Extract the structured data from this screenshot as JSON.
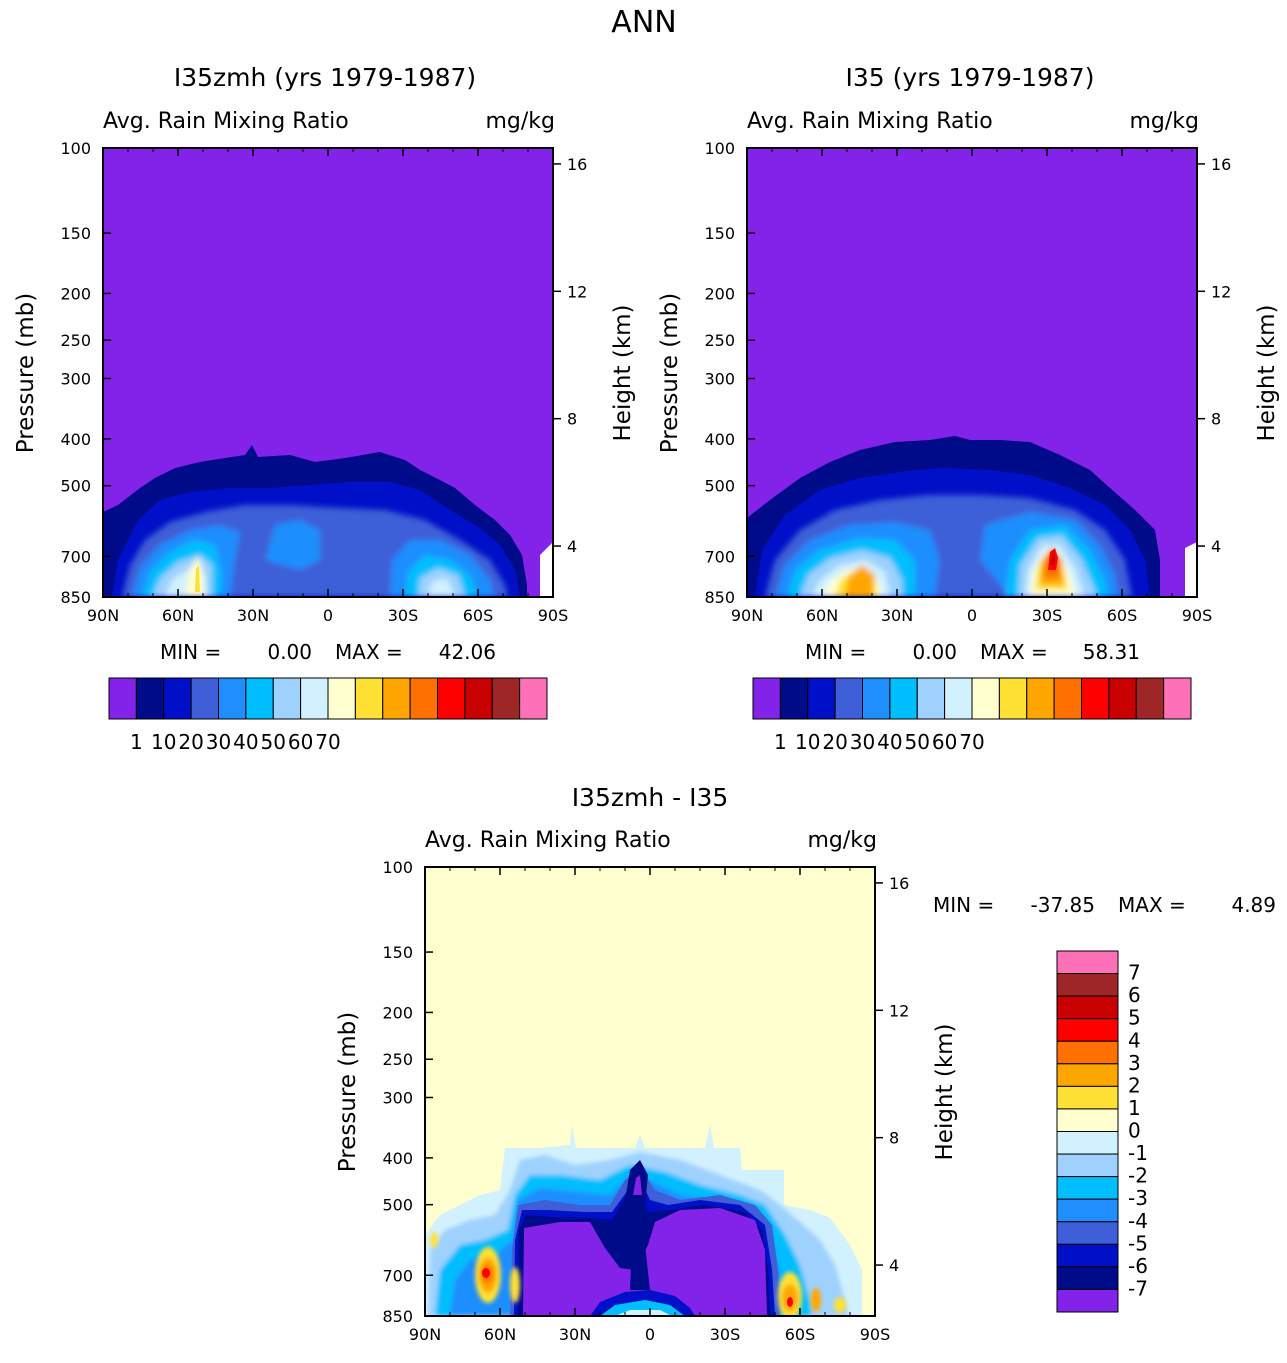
{
  "main_title": "ANN",
  "palette": [
    "#8322e9",
    "#000b8a",
    "#0010c8",
    "#3e5fd7",
    "#1f8efe",
    "#01befe",
    "#9fd1fe",
    "#d2f1fe",
    "#ffffd0",
    "#ffe135",
    "#ffa700",
    "#fe7000",
    "#fe0000",
    "#c80000",
    "#9f2627",
    "#fe70b8"
  ],
  "chart_data": [
    {
      "type": "contour",
      "title": "I35zmh (yrs 1979-1987)",
      "left_label": "Avg. Rain Mixing Ratio",
      "right_label": "mg/kg",
      "ylabel": "Pressure (mb)",
      "y2label": "Height (km)",
      "x_ticks": [
        "90N",
        "60N",
        "30N",
        "0",
        "30S",
        "60S",
        "90S"
      ],
      "y_ticks": [
        "100",
        "150",
        "200",
        "250",
        "300",
        "400",
        "500",
        "700",
        "850"
      ],
      "y2_ticks": [
        "16",
        "12",
        "8",
        "4"
      ],
      "stats": {
        "min_label": "MIN =",
        "min": "0.00",
        "max_label": "MAX =",
        "max": "42.06"
      },
      "colorbar_labels": [
        "1",
        "10",
        "20",
        "30",
        "40",
        "50",
        "60",
        "70"
      ],
      "grid": false
    },
    {
      "type": "contour",
      "title": "I35 (yrs 1979-1987)",
      "left_label": "Avg. Rain Mixing Ratio",
      "right_label": "mg/kg",
      "ylabel": "Pressure (mb)",
      "y2label": "Height (km)",
      "x_ticks": [
        "90N",
        "60N",
        "30N",
        "0",
        "30S",
        "60S",
        "90S"
      ],
      "y_ticks": [
        "100",
        "150",
        "200",
        "250",
        "300",
        "400",
        "500",
        "700",
        "850"
      ],
      "y2_ticks": [
        "16",
        "12",
        "8",
        "4"
      ],
      "stats": {
        "min_label": "MIN =",
        "min": "0.00",
        "max_label": "MAX =",
        "max": "58.31"
      },
      "colorbar_labels": [
        "1",
        "10",
        "20",
        "30",
        "40",
        "50",
        "60",
        "70"
      ],
      "grid": false
    },
    {
      "type": "contour",
      "title": "I35zmh - I35",
      "left_label": "Avg. Rain Mixing Ratio",
      "right_label": "mg/kg",
      "ylabel": "Pressure (mb)",
      "y2label": "Height (km)",
      "x_ticks": [
        "90N",
        "60N",
        "30N",
        "0",
        "30S",
        "60S",
        "90S"
      ],
      "y_ticks": [
        "100",
        "150",
        "200",
        "250",
        "300",
        "400",
        "500",
        "700",
        "850"
      ],
      "y2_ticks": [
        "16",
        "12",
        "8",
        "4"
      ],
      "stats": {
        "min_label": "MIN =",
        "min": "-37.85",
        "max_label": "MAX =",
        "max": "4.89"
      },
      "colorbar_labels": [
        "7",
        "6",
        "5",
        "4",
        "3",
        "2",
        "1",
        "0",
        "-1",
        "-2",
        "-3",
        "-4",
        "-5",
        "-6",
        "-7"
      ],
      "grid": false
    }
  ]
}
